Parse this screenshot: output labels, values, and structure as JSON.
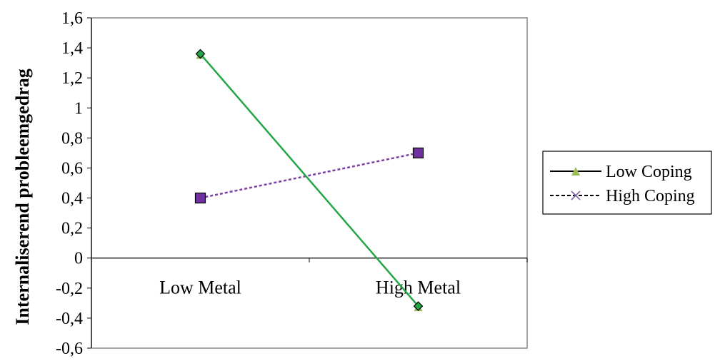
{
  "chart_data": {
    "type": "line",
    "categories": [
      "Low Metal",
      "High Metal"
    ],
    "ylabel": "Internaliserend probleemgedrag",
    "xlabel": "",
    "ylim": [
      -0.6,
      1.6
    ],
    "ytick_step": 0.2,
    "ytick_labels": [
      "1,6",
      "1,4",
      "1,2",
      "1",
      "0,8",
      "0,6",
      "0,4",
      "0,2",
      "0",
      "-0,2",
      "-0,4",
      "-0,6"
    ],
    "grid": false,
    "legend_position": "right",
    "series": [
      {
        "name": "Low Coping",
        "values": [
          1.36,
          -0.32
        ],
        "line_color": "#22a646",
        "line_style": "solid",
        "marker": "diamond",
        "marker_fill": "#22a646",
        "legend_marker": "triangle",
        "legend_marker_color": "#9bbb59",
        "legend_line_color": "#000000"
      },
      {
        "name": "High Coping",
        "values": [
          0.4,
          0.7
        ],
        "line_color": "#7a3fa8",
        "line_style": "dashed",
        "marker": "square",
        "marker_fill": "#7030a0",
        "legend_marker": "x",
        "legend_marker_color": "#8064a2",
        "legend_line_color": "#000000"
      }
    ]
  }
}
